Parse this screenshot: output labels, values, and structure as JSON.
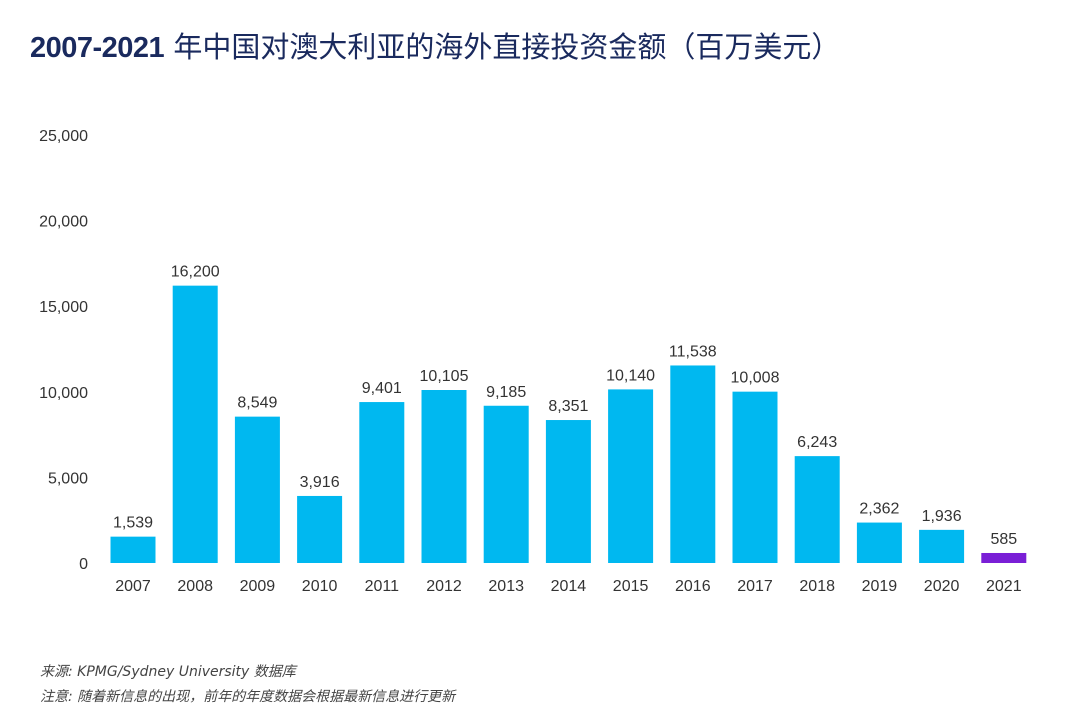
{
  "title_years": "2007-2021",
  "title_text": "年中国对澳大利亚的海外直接投资金额（百万美元）",
  "footer": {
    "source": "来源: KPMG/Sydney University 数据库",
    "note": "注意: 随着新信息的出现，前年的年度数据会根据最新信息进行更新"
  },
  "chart_data": {
    "type": "bar",
    "categories": [
      "2007",
      "2008",
      "2009",
      "2010",
      "2011",
      "2012",
      "2013",
      "2014",
      "2015",
      "2016",
      "2017",
      "2018",
      "2019",
      "2020",
      "2021"
    ],
    "values": [
      1539,
      16200,
      8549,
      3916,
      9401,
      10105,
      9185,
      8351,
      10140,
      11538,
      10008,
      6243,
      2362,
      1936,
      585
    ],
    "value_labels": [
      "1,539",
      "16,200",
      "8,549",
      "3,916",
      "9,401",
      "10,105",
      "9,185",
      "8,351",
      "10,140",
      "11,538",
      "10,008",
      "6,243",
      "2,362",
      "1,936",
      "585"
    ],
    "ylim": [
      0,
      25000
    ],
    "yticks": [
      0,
      5000,
      10000,
      15000,
      20000,
      25000
    ],
    "ytick_labels": [
      "0",
      "5,000",
      "10,000",
      "15,000",
      "20,000",
      "25,000"
    ],
    "colors": {
      "default": "#00b8f0",
      "highlight": "#7a1fd6"
    },
    "highlight_category": "2021",
    "grid": false,
    "xlabel": "",
    "ylabel": ""
  }
}
